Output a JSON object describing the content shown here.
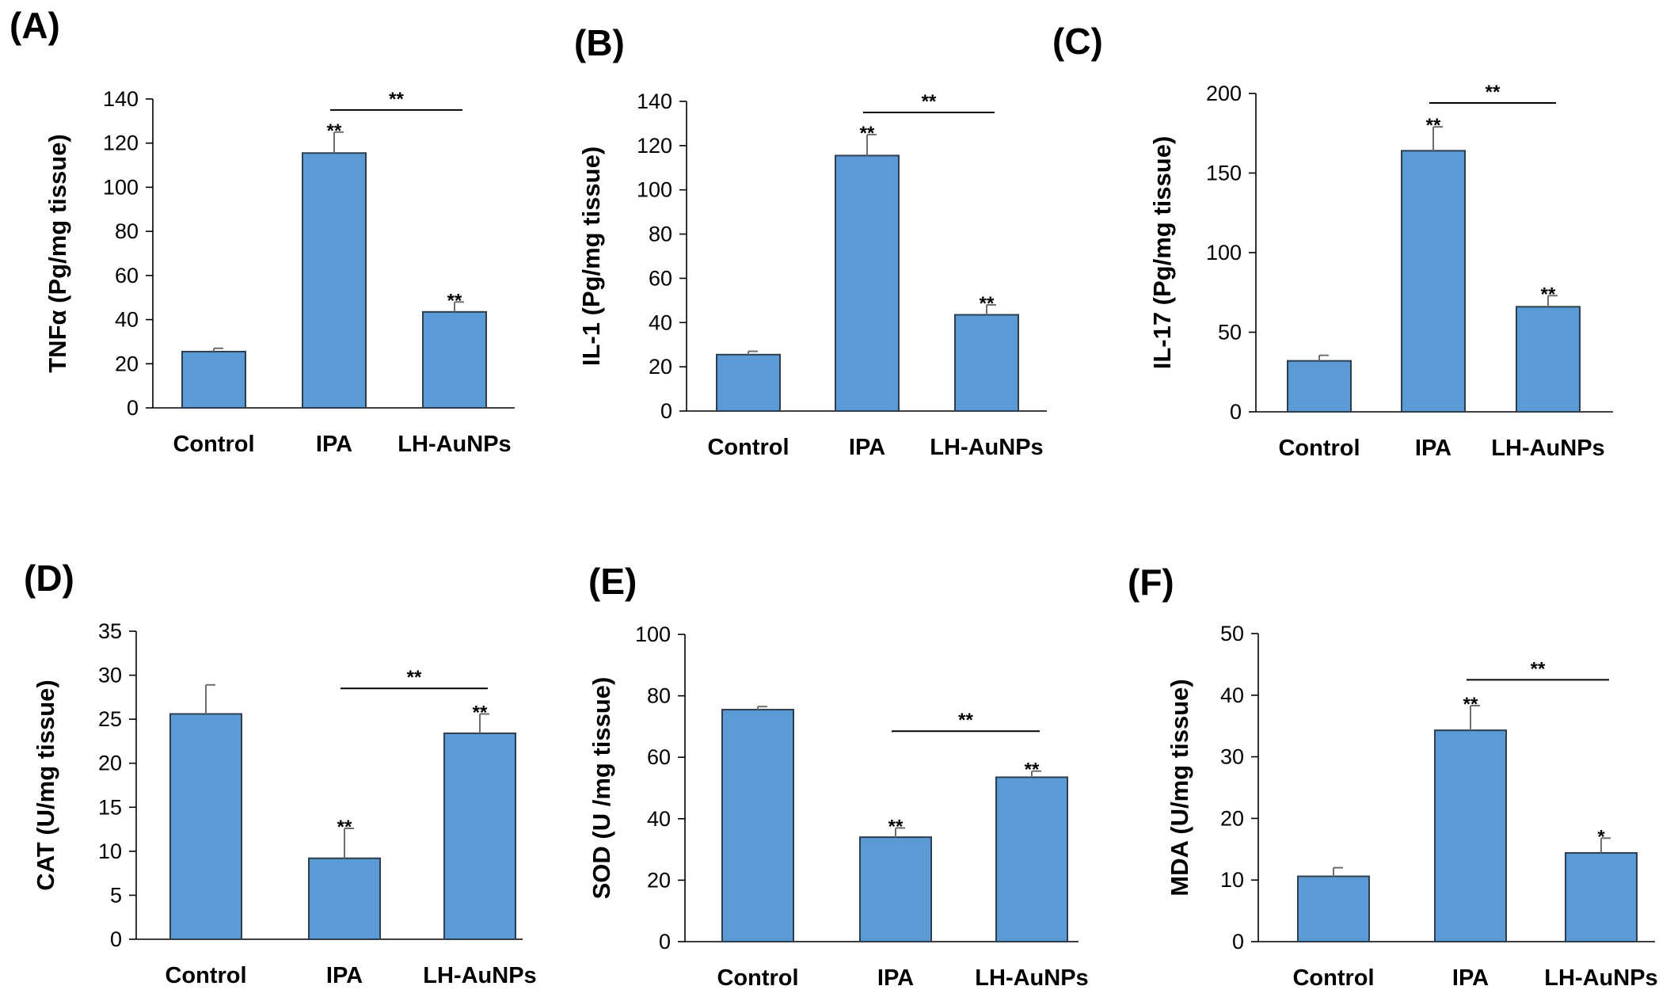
{
  "chart_data": [
    {
      "type": "bar",
      "panel_letter": "(A)",
      "ylabel": "TNFα (Pg/mg tissue)",
      "categories": [
        "Control",
        "IPA",
        "LH-AuNPs"
      ],
      "values": [
        25.5,
        115.5,
        43.5
      ],
      "errors": [
        1.5,
        9.5,
        4.5
      ],
      "stars": [
        "",
        "**",
        "**"
      ],
      "ylim": [
        0,
        140
      ],
      "yticks": [
        "0",
        "20",
        "40",
        "60",
        "80",
        "100",
        "120",
        "140"
      ],
      "comparison": {
        "from": "IPA",
        "to": "LH-AuNPs",
        "label": "**",
        "y": 135
      }
    },
    {
      "type": "bar",
      "panel_letter": "(B)",
      "ylabel": "IL-1 (Pg/mg tissue)",
      "categories": [
        "Control",
        "IPA",
        "LH-AuNPs"
      ],
      "values": [
        25.5,
        115.5,
        43.5
      ],
      "errors": [
        1.5,
        9.5,
        4.5
      ],
      "stars": [
        "",
        "**",
        "**"
      ],
      "ylim": [
        0,
        140
      ],
      "yticks": [
        "0",
        "20",
        "40",
        "60",
        "80",
        "100",
        "120",
        "140"
      ],
      "comparison": {
        "from": "IPA",
        "to": "LH-AuNPs",
        "label": "**",
        "y": 135
      }
    },
    {
      "type": "bar",
      "panel_letter": "(C)",
      "ylabel": "IL-17 (Pg/mg tissue)",
      "categories": [
        "Control",
        "IPA",
        "LH-AuNPs"
      ],
      "values": [
        32,
        164,
        66
      ],
      "errors": [
        3.5,
        15,
        7
      ],
      "stars": [
        "",
        "**",
        "**"
      ],
      "ylim": [
        0,
        200
      ],
      "yticks": [
        "0",
        "50",
        "100",
        "150",
        "200"
      ],
      "comparison": {
        "from": "IPA",
        "to": "LH-AuNPs",
        "label": "**",
        "y": 194
      }
    },
    {
      "type": "bar",
      "panel_letter": "(D)",
      "ylabel": "CAT (U/mg tissue)",
      "categories": [
        "Control",
        "IPA",
        "LH-AuNPs"
      ],
      "values": [
        25.6,
        9.2,
        23.4
      ],
      "errors": [
        3.3,
        3.4,
        2.2
      ],
      "stars": [
        "",
        "**",
        "**"
      ],
      "ylim": [
        0,
        35
      ],
      "yticks": [
        "0",
        "5",
        "10",
        "15",
        "20",
        "25",
        "30",
        "35"
      ],
      "comparison": {
        "from": "IPA",
        "to": "LH-AuNPs",
        "label": "**",
        "y": 28.5
      }
    },
    {
      "type": "bar",
      "panel_letter": "(E)",
      "ylabel": "SOD (U /mg tissue)",
      "categories": [
        "Control",
        "IPA",
        "LH-AuNPs"
      ],
      "values": [
        75.5,
        34,
        53.5
      ],
      "errors": [
        1,
        3,
        2
      ],
      "stars": [
        "",
        "**",
        "**"
      ],
      "ylim": [
        0,
        100
      ],
      "yticks": [
        "0",
        "20",
        "40",
        "60",
        "80",
        "100"
      ],
      "comparison": {
        "from": "IPA",
        "to": "LH-AuNPs",
        "label": "**",
        "y": 68.5
      }
    },
    {
      "type": "bar",
      "panel_letter": "(F)",
      "ylabel": "MDA (U/mg tissue)",
      "categories": [
        "Control",
        "IPA",
        "LH-AuNPs"
      ],
      "values": [
        10.6,
        34.3,
        14.4
      ],
      "errors": [
        1.4,
        4,
        2.4
      ],
      "stars": [
        "",
        "**",
        "*"
      ],
      "ylim": [
        0,
        50
      ],
      "yticks": [
        "0",
        "10",
        "20",
        "30",
        "40",
        "50"
      ],
      "comparison": {
        "from": "IPA",
        "to": "LH-AuNPs",
        "label": "**",
        "y": 42.5
      }
    }
  ]
}
